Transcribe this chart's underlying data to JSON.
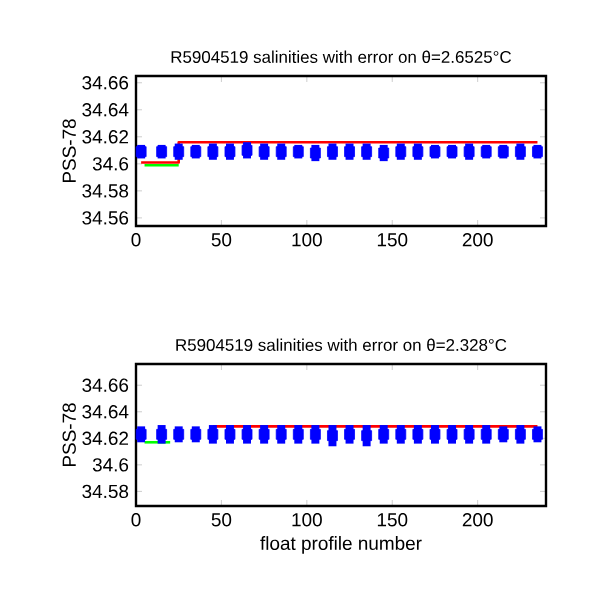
{
  "chart_data": [
    {
      "type": "scatter",
      "title": "R5904519 salinities with error on θ=2.6525°C",
      "ylabel": "PSS-78",
      "xlim": [
        0,
        240
      ],
      "ylim": [
        34.554,
        34.665
      ],
      "xticks": [
        0,
        50,
        100,
        150,
        200
      ],
      "yticks": [
        34.56,
        34.58,
        34.6,
        34.62,
        34.64,
        34.66
      ],
      "series": [
        {
          "type": "line",
          "color": "#ff0000",
          "x": [
            3,
            25,
            25,
            235
          ],
          "values": [
            34.601,
            34.601,
            34.616,
            34.616
          ]
        },
        {
          "type": "line",
          "color": "#00ff00",
          "x": [
            5,
            25
          ],
          "values": [
            34.599,
            34.599
          ]
        },
        {
          "color": "#0000ff",
          "marker": "square",
          "x": [
            3,
            15,
            25,
            35,
            45,
            55,
            65,
            75,
            85,
            95,
            105,
            115,
            125,
            135,
            145,
            155,
            165,
            175,
            185,
            195,
            205,
            215,
            225,
            235
          ],
          "values": [
            34.609,
            34.609,
            34.609,
            34.609,
            34.609,
            34.609,
            34.61,
            34.609,
            34.609,
            34.609,
            34.608,
            34.609,
            34.609,
            34.609,
            34.608,
            34.609,
            34.609,
            34.609,
            34.609,
            34.609,
            34.609,
            34.609,
            34.609,
            34.609
          ],
          "errors": [
            0.005,
            0.005,
            0.006,
            0.005,
            0.006,
            0.006,
            0.006,
            0.006,
            0.006,
            0.005,
            0.006,
            0.006,
            0.006,
            0.006,
            0.006,
            0.006,
            0.006,
            0.005,
            0.005,
            0.006,
            0.005,
            0.005,
            0.006,
            0.005
          ]
        }
      ]
    },
    {
      "type": "scatter",
      "title": "R5904519 salinities with error on θ=2.328°C",
      "xlabel": "float profile number",
      "ylabel": "PSS-78",
      "xlim": [
        0,
        240
      ],
      "ylim": [
        34.569,
        34.676
      ],
      "xticks": [
        0,
        50,
        100,
        150,
        200
      ],
      "yticks": [
        34.58,
        34.6,
        34.62,
        34.64,
        34.66
      ],
      "series": [
        {
          "type": "line",
          "color": "#ff0000",
          "x": [
            45,
            235
          ],
          "values": [
            34.629,
            34.629
          ]
        },
        {
          "type": "line",
          "color": "#00ff00",
          "x": [
            5,
            20
          ],
          "values": [
            34.617,
            34.617
          ]
        },
        {
          "color": "#0000ff",
          "marker": "square",
          "x": [
            3,
            15,
            25,
            35,
            45,
            55,
            65,
            75,
            85,
            95,
            105,
            115,
            125,
            135,
            145,
            155,
            165,
            175,
            185,
            195,
            205,
            215,
            225,
            235
          ],
          "values": [
            34.623,
            34.623,
            34.623,
            34.623,
            34.623,
            34.623,
            34.623,
            34.623,
            34.623,
            34.623,
            34.623,
            34.622,
            34.623,
            34.622,
            34.623,
            34.623,
            34.623,
            34.623,
            34.623,
            34.623,
            34.623,
            34.623,
            34.623,
            34.623
          ],
          "errors": [
            0.006,
            0.007,
            0.006,
            0.006,
            0.007,
            0.007,
            0.007,
            0.007,
            0.007,
            0.007,
            0.007,
            0.008,
            0.007,
            0.008,
            0.007,
            0.007,
            0.007,
            0.007,
            0.007,
            0.007,
            0.007,
            0.006,
            0.007,
            0.006
          ]
        }
      ]
    }
  ]
}
